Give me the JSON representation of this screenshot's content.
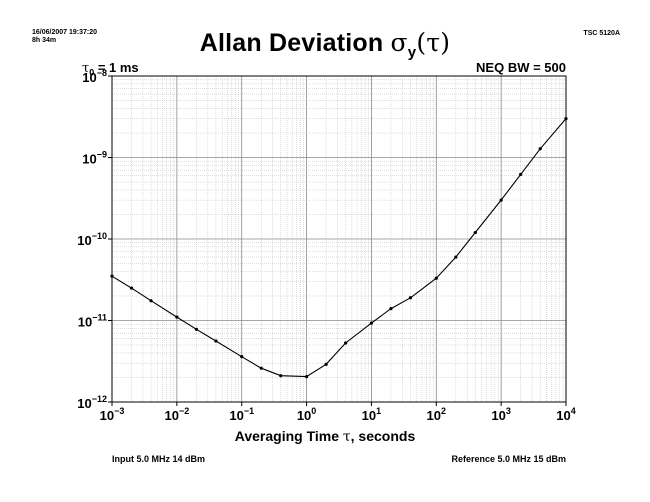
{
  "header": {
    "timestamp": "16/06/2007 19:37:20",
    "elapsed": "8h 34m",
    "instrument": "TSC 5120A"
  },
  "annotations": {
    "tau0_symbol": "τ",
    "tau0_sub": "0",
    "tau0_value": " = 1 ms",
    "neq_bw": "NEQ BW = 500"
  },
  "footer": {
    "input": "Input 5.0 MHz 14 dBm",
    "reference": "Reference 5.0 MHz 15 dBm"
  },
  "chart_data": {
    "type": "line",
    "title_text": "Allan Deviation ",
    "title_sigma": "σ",
    "title_sub": "y",
    "title_tau": "(τ)",
    "xlabel_text": "Averaging Time ",
    "xlabel_tau": "τ",
    "xlabel_units": ", seconds",
    "ylabel": "",
    "x_scale": "log",
    "y_scale": "log",
    "xlim": [
      0.001,
      10000
    ],
    "ylim": [
      1e-12,
      1e-08
    ],
    "x_ticks": [
      {
        "base": "10",
        "exp": "−3"
      },
      {
        "base": "10",
        "exp": "−2"
      },
      {
        "base": "10",
        "exp": "−1"
      },
      {
        "base": "10",
        "exp": "0"
      },
      {
        "base": "10",
        "exp": "1"
      },
      {
        "base": "10",
        "exp": "2"
      },
      {
        "base": "10",
        "exp": "3"
      },
      {
        "base": "10",
        "exp": "4"
      }
    ],
    "y_ticks": [
      {
        "base": "10",
        "exp": "−12"
      },
      {
        "base": "10",
        "exp": "−11"
      },
      {
        "base": "10",
        "exp": "−10"
      },
      {
        "base": "10",
        "exp": "−9"
      },
      {
        "base": "10",
        "exp": "−8"
      }
    ],
    "grid": true,
    "series": [
      {
        "x": [
          0.001,
          0.002,
          0.004,
          0.01,
          0.02,
          0.04,
          0.1,
          0.2,
          0.4,
          1,
          2,
          4,
          10,
          20,
          40,
          100,
          200,
          400,
          1000,
          2000,
          4000,
          10000
        ],
        "y": [
          3.5e-11,
          2.5e-11,
          1.75e-11,
          1.1e-11,
          7.8e-12,
          5.6e-12,
          3.6e-12,
          2.6e-12,
          2.1e-12,
          2.05e-12,
          2.9e-12,
          5.3e-12,
          9.3e-12,
          1.4e-11,
          1.9e-11,
          3.3e-11,
          6e-11,
          1.2e-10,
          3e-10,
          6.2e-10,
          1.28e-09,
          3e-09
        ]
      }
    ]
  }
}
